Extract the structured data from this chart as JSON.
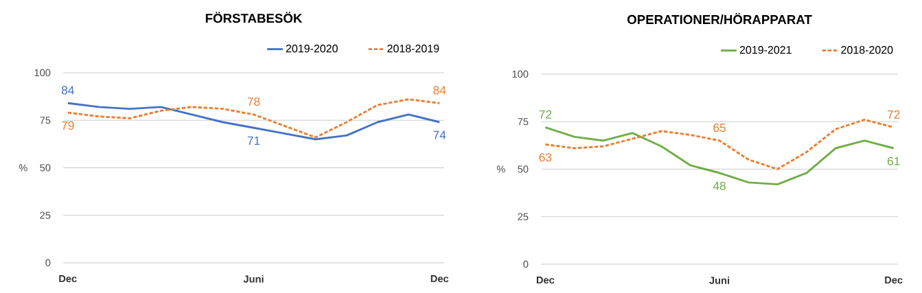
{
  "chart_data": [
    {
      "type": "line",
      "title": "FÖRSTABESÖK",
      "ylabel": "%",
      "categories": [
        "Dec",
        null,
        null,
        null,
        null,
        null,
        "Juni",
        null,
        null,
        null,
        null,
        null,
        "Dec"
      ],
      "series": [
        {
          "name": "2019-2020",
          "color": "#4472c4",
          "line_style": "solid",
          "values": [
            84,
            82,
            81,
            82,
            78,
            74,
            71,
            68,
            65,
            67,
            74,
            78,
            74
          ],
          "value_labels": [
            "84",
            null,
            null,
            null,
            null,
            null,
            "71",
            null,
            null,
            null,
            null,
            null,
            "74"
          ]
        },
        {
          "name": "2018-2019",
          "color": "#ed7d31",
          "line_style": "dashed",
          "values": [
            79,
            77,
            76,
            80,
            82,
            81,
            78,
            72,
            66,
            74,
            83,
            86,
            84
          ],
          "value_labels": [
            "79",
            null,
            null,
            null,
            null,
            null,
            "78",
            null,
            null,
            null,
            null,
            null,
            "84"
          ]
        }
      ],
      "ylim": [
        0,
        100
      ],
      "yticks": [
        0,
        25,
        50,
        75,
        100
      ],
      "grid": "y",
      "legend": "top right",
      "marker": "none"
    },
    {
      "type": "line",
      "title": "OPERATIONER/HÖRAPPARAT",
      "ylabel": "%",
      "categories": [
        "Dec",
        null,
        null,
        null,
        null,
        null,
        "Juni",
        null,
        null,
        null,
        null,
        null,
        "Dec"
      ],
      "series": [
        {
          "name": "2019-2021",
          "color": "#70ad47",
          "line_style": "solid",
          "values": [
            72,
            67,
            65,
            69,
            62,
            52,
            48,
            43,
            42,
            48,
            61,
            65,
            61
          ],
          "value_labels": [
            "72",
            null,
            null,
            null,
            null,
            null,
            "48",
            null,
            null,
            null,
            null,
            null,
            "61"
          ]
        },
        {
          "name": "2018-2020",
          "color": "#ed7d31",
          "line_style": "dashed",
          "values": [
            63,
            61,
            62,
            66,
            70,
            68,
            65,
            55,
            50,
            59,
            71,
            76,
            72
          ],
          "value_labels": [
            "63",
            null,
            null,
            null,
            null,
            null,
            "65",
            null,
            null,
            null,
            null,
            null,
            "72"
          ]
        }
      ],
      "ylim": [
        0,
        100
      ],
      "yticks": [
        0,
        25,
        50,
        75,
        100
      ],
      "grid": "y",
      "legend": "top right",
      "marker": "none"
    }
  ]
}
